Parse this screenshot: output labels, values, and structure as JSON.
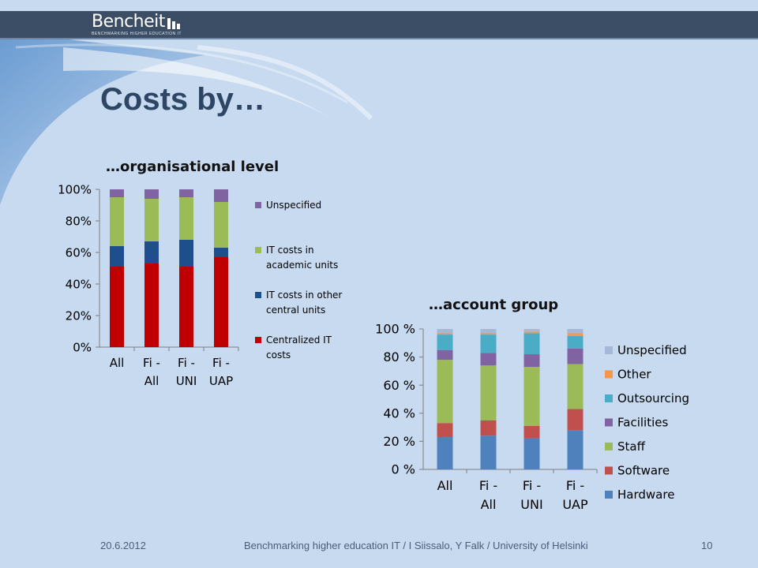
{
  "header": {
    "logo_text": "Bencheit",
    "logo_tagline": "BENCHMARKING HIGHER EDUCATION IT"
  },
  "slide": {
    "title": "Costs by…"
  },
  "footer": {
    "date": "20.6.2012",
    "credit": "Benchmarking higher education IT / I Siissalo, Y Falk / University of Helsinki",
    "page": "10"
  },
  "chart_data": [
    {
      "type": "bar",
      "stacked": true,
      "percent": true,
      "title": "…organisational level",
      "categories": [
        [
          "All"
        ],
        [
          "Fi -",
          "All"
        ],
        [
          "Fi -",
          "UNI"
        ],
        [
          "Fi -",
          "UAP"
        ]
      ],
      "y_ticks": [
        "0%",
        "20%",
        "40%",
        "60%",
        "80%",
        "100%"
      ],
      "ylim": [
        0,
        100
      ],
      "legend_position": "right",
      "series": [
        {
          "name": "Centralized IT costs",
          "color": "#c00000",
          "values": [
            51,
            53,
            51,
            57
          ]
        },
        {
          "name": "IT costs in other central units",
          "color": "#1f4e8c",
          "values": [
            13,
            14,
            17,
            6
          ]
        },
        {
          "name": "IT costs in academic units",
          "color": "#9bbb59",
          "values": [
            31,
            27,
            27,
            29
          ]
        },
        {
          "name": "Unspecified",
          "color": "#8064a2",
          "values": [
            5,
            6,
            5,
            8
          ]
        }
      ]
    },
    {
      "type": "bar",
      "stacked": true,
      "percent": true,
      "title": "…account group",
      "categories": [
        [
          "All"
        ],
        [
          "Fi -",
          "All"
        ],
        [
          "Fi -",
          "UNI"
        ],
        [
          "Fi -",
          "UAP"
        ]
      ],
      "y_ticks": [
        "0 %",
        "20 %",
        "40 %",
        "60 %",
        "80 %",
        "100 %"
      ],
      "ylim": [
        0,
        100
      ],
      "legend_position": "right",
      "series": [
        {
          "name": "Hardware",
          "color": "#4f81bd",
          "values": [
            23,
            24,
            22,
            28
          ]
        },
        {
          "name": "Software",
          "color": "#c0504d",
          "values": [
            10,
            11,
            9,
            15
          ]
        },
        {
          "name": "Staff",
          "color": "#9bbb59",
          "values": [
            45,
            39,
            42,
            32
          ]
        },
        {
          "name": "Facilities",
          "color": "#8064a2",
          "values": [
            7,
            9,
            9,
            11
          ]
        },
        {
          "name": "Outsourcing",
          "color": "#4bacc6",
          "values": [
            11,
            13,
            15,
            9
          ]
        },
        {
          "name": "Other",
          "color": "#f79646",
          "values": [
            1,
            1,
            1,
            2
          ]
        },
        {
          "name": "Unspecified",
          "color": "#a5b8d8",
          "values": [
            3,
            3,
            2,
            3
          ]
        }
      ]
    }
  ]
}
